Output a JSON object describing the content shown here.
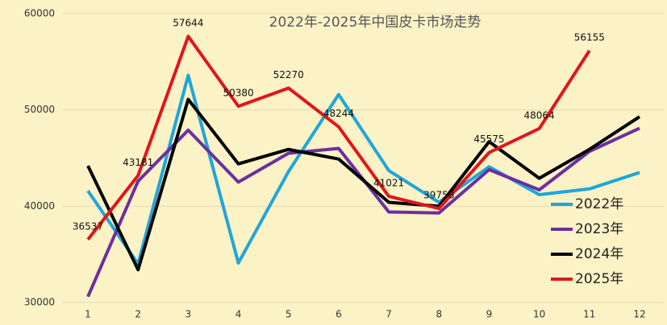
{
  "chart_data": {
    "type": "line",
    "title": "2022年-2025年中国皮卡市场走势",
    "categories": [
      "1",
      "2",
      "3",
      "4",
      "5",
      "6",
      "7",
      "8",
      "9",
      "10",
      "11",
      "12"
    ],
    "ylim": [
      30000,
      60000
    ],
    "yticks": [
      30000,
      40000,
      50000,
      60000
    ],
    "grid": true,
    "legend": "lower-right",
    "series": [
      {
        "name": "2022年",
        "color": "#1fa6d9",
        "values": [
          41600,
          34000,
          53600,
          34100,
          43600,
          51600,
          43700,
          40400,
          44100,
          41200,
          41800,
          43500
        ]
      },
      {
        "name": "2023年",
        "color": "#6b2fa0",
        "values": [
          30600,
          42600,
          47900,
          42500,
          45500,
          46000,
          39400,
          39300,
          43800,
          41700,
          45700,
          48100
        ]
      },
      {
        "name": "2024年",
        "color": "#000000",
        "values": [
          44200,
          33400,
          51100,
          44400,
          45900,
          44900,
          40400,
          40000,
          46700,
          42900,
          45900,
          49300
        ]
      },
      {
        "name": "2025年",
        "color": "#e0161b",
        "values": [
          36537,
          43181,
          57644,
          50380,
          52270,
          48244,
          41021,
          39758,
          45575,
          48064,
          56155,
          null
        ],
        "show_labels": true
      }
    ]
  }
}
